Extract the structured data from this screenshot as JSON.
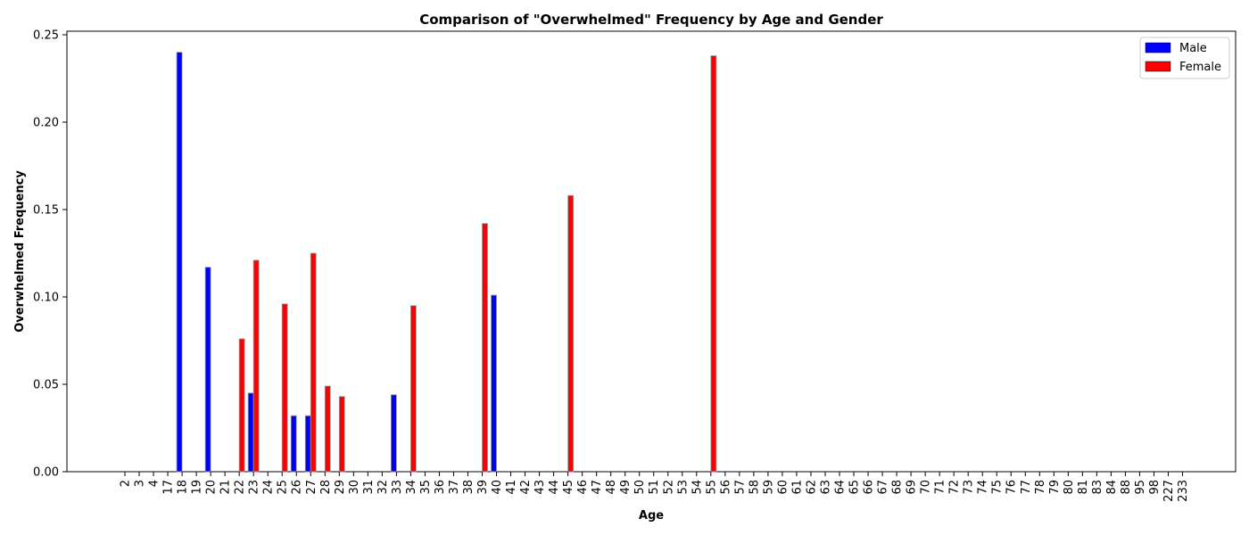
{
  "chart_data": {
    "type": "bar",
    "title": "Comparison of \"Overwhelmed\" Frequency by Age and Gender",
    "xlabel": "Age",
    "ylabel": "Overwhelmed Frequency",
    "ylim": [
      0,
      0.25
    ],
    "yticks": [
      "0.00",
      "0.05",
      "0.10",
      "0.15",
      "0.20",
      "0.25"
    ],
    "categories": [
      "2",
      "3",
      "4",
      "17",
      "18",
      "19",
      "20",
      "21",
      "22",
      "23",
      "24",
      "25",
      "26",
      "27",
      "28",
      "29",
      "30",
      "31",
      "32",
      "33",
      "34",
      "35",
      "36",
      "37",
      "38",
      "39",
      "40",
      "41",
      "42",
      "43",
      "44",
      "45",
      "46",
      "47",
      "48",
      "49",
      "50",
      "51",
      "52",
      "53",
      "54",
      "55",
      "56",
      "57",
      "58",
      "59",
      "60",
      "61",
      "62",
      "63",
      "64",
      "65",
      "66",
      "67",
      "68",
      "69",
      "70",
      "71",
      "72",
      "73",
      "74",
      "75",
      "76",
      "77",
      "78",
      "79",
      "80",
      "81",
      "83",
      "84",
      "88",
      "95",
      "98",
      "227",
      "233"
    ],
    "series": [
      {
        "name": "Male",
        "color": "#0000ff",
        "values": [
          0,
          0,
          0,
          0,
          0.24,
          0,
          0.117,
          0,
          0,
          0.045,
          0,
          0,
          0.032,
          0.032,
          0,
          0,
          0,
          0,
          0,
          0.044,
          0,
          0,
          0,
          0,
          0,
          0,
          0.101,
          0,
          0,
          0,
          0,
          0,
          0,
          0,
          0,
          0,
          0,
          0,
          0,
          0,
          0,
          0,
          0,
          0,
          0,
          0,
          0,
          0,
          0,
          0,
          0,
          0,
          0,
          0,
          0,
          0,
          0,
          0,
          0,
          0,
          0,
          0,
          0,
          0,
          0,
          0,
          0,
          0,
          0,
          0,
          0,
          0,
          0,
          0,
          0
        ]
      },
      {
        "name": "Female",
        "color": "#ff0000",
        "values": [
          0,
          0,
          0,
          0,
          0,
          0,
          0,
          0,
          0.076,
          0.121,
          0,
          0.096,
          0,
          0.125,
          0.049,
          0.043,
          0,
          0,
          0,
          0,
          0.095,
          0,
          0,
          0,
          0,
          0.142,
          0,
          0,
          0,
          0,
          0,
          0.158,
          0,
          0,
          0,
          0,
          0,
          0,
          0,
          0,
          0,
          0.238,
          0,
          0,
          0,
          0,
          0,
          0,
          0,
          0,
          0,
          0,
          0,
          0,
          0,
          0,
          0,
          0,
          0,
          0,
          0,
          0,
          0,
          0,
          0,
          0,
          0,
          0,
          0,
          0,
          0,
          0,
          0,
          0,
          0
        ]
      }
    ],
    "legend_position": "top-right"
  }
}
